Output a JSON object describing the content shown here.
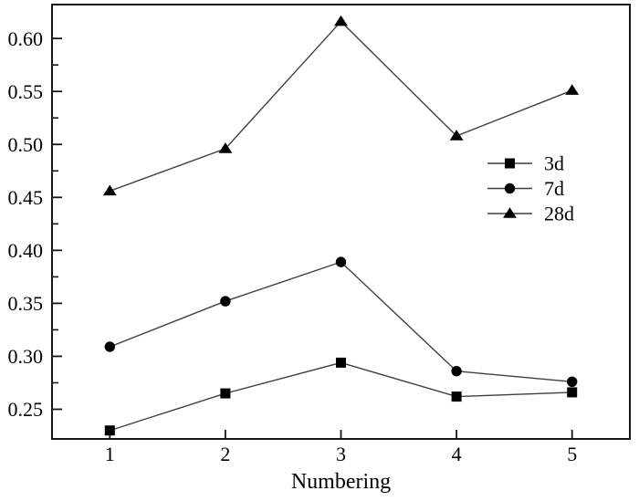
{
  "figure": {
    "background": "#ffffff"
  },
  "chart_data": {
    "type": "line",
    "title": "",
    "xlabel": "Numbering",
    "ylabel": "",
    "x": [
      1,
      2,
      3,
      4,
      5
    ],
    "x_tick_labels": [
      "1",
      "2",
      "3",
      "4",
      "5"
    ],
    "series": [
      {
        "name": "3d",
        "marker": "square",
        "values": [
          0.23,
          0.265,
          0.294,
          0.262,
          0.266
        ]
      },
      {
        "name": "7d",
        "marker": "circle",
        "values": [
          0.309,
          0.352,
          0.389,
          0.286,
          0.276
        ]
      },
      {
        "name": "28d",
        "marker": "triangle",
        "values": [
          0.456,
          0.496,
          0.616,
          0.508,
          0.551
        ]
      }
    ],
    "y_ticks": [
      0.25,
      0.3,
      0.35,
      0.4,
      0.45,
      0.5,
      0.55,
      0.6
    ],
    "y_tick_labels": [
      "0.25",
      "0.30",
      "0.35",
      "0.40",
      "0.45",
      "0.50",
      "0.55",
      "0.60"
    ],
    "ylim": [
      0.222,
      0.632
    ],
    "xlim": [
      0.5,
      5.5
    ],
    "grid": false,
    "legend": {
      "position": "right-middle",
      "entries": [
        "3d",
        "7d",
        "28d"
      ]
    }
  },
  "colors": {
    "background": "#ffffff",
    "axis": "#161616",
    "line": "#3f3f3f",
    "marker": "#000000",
    "text": "#000000"
  }
}
